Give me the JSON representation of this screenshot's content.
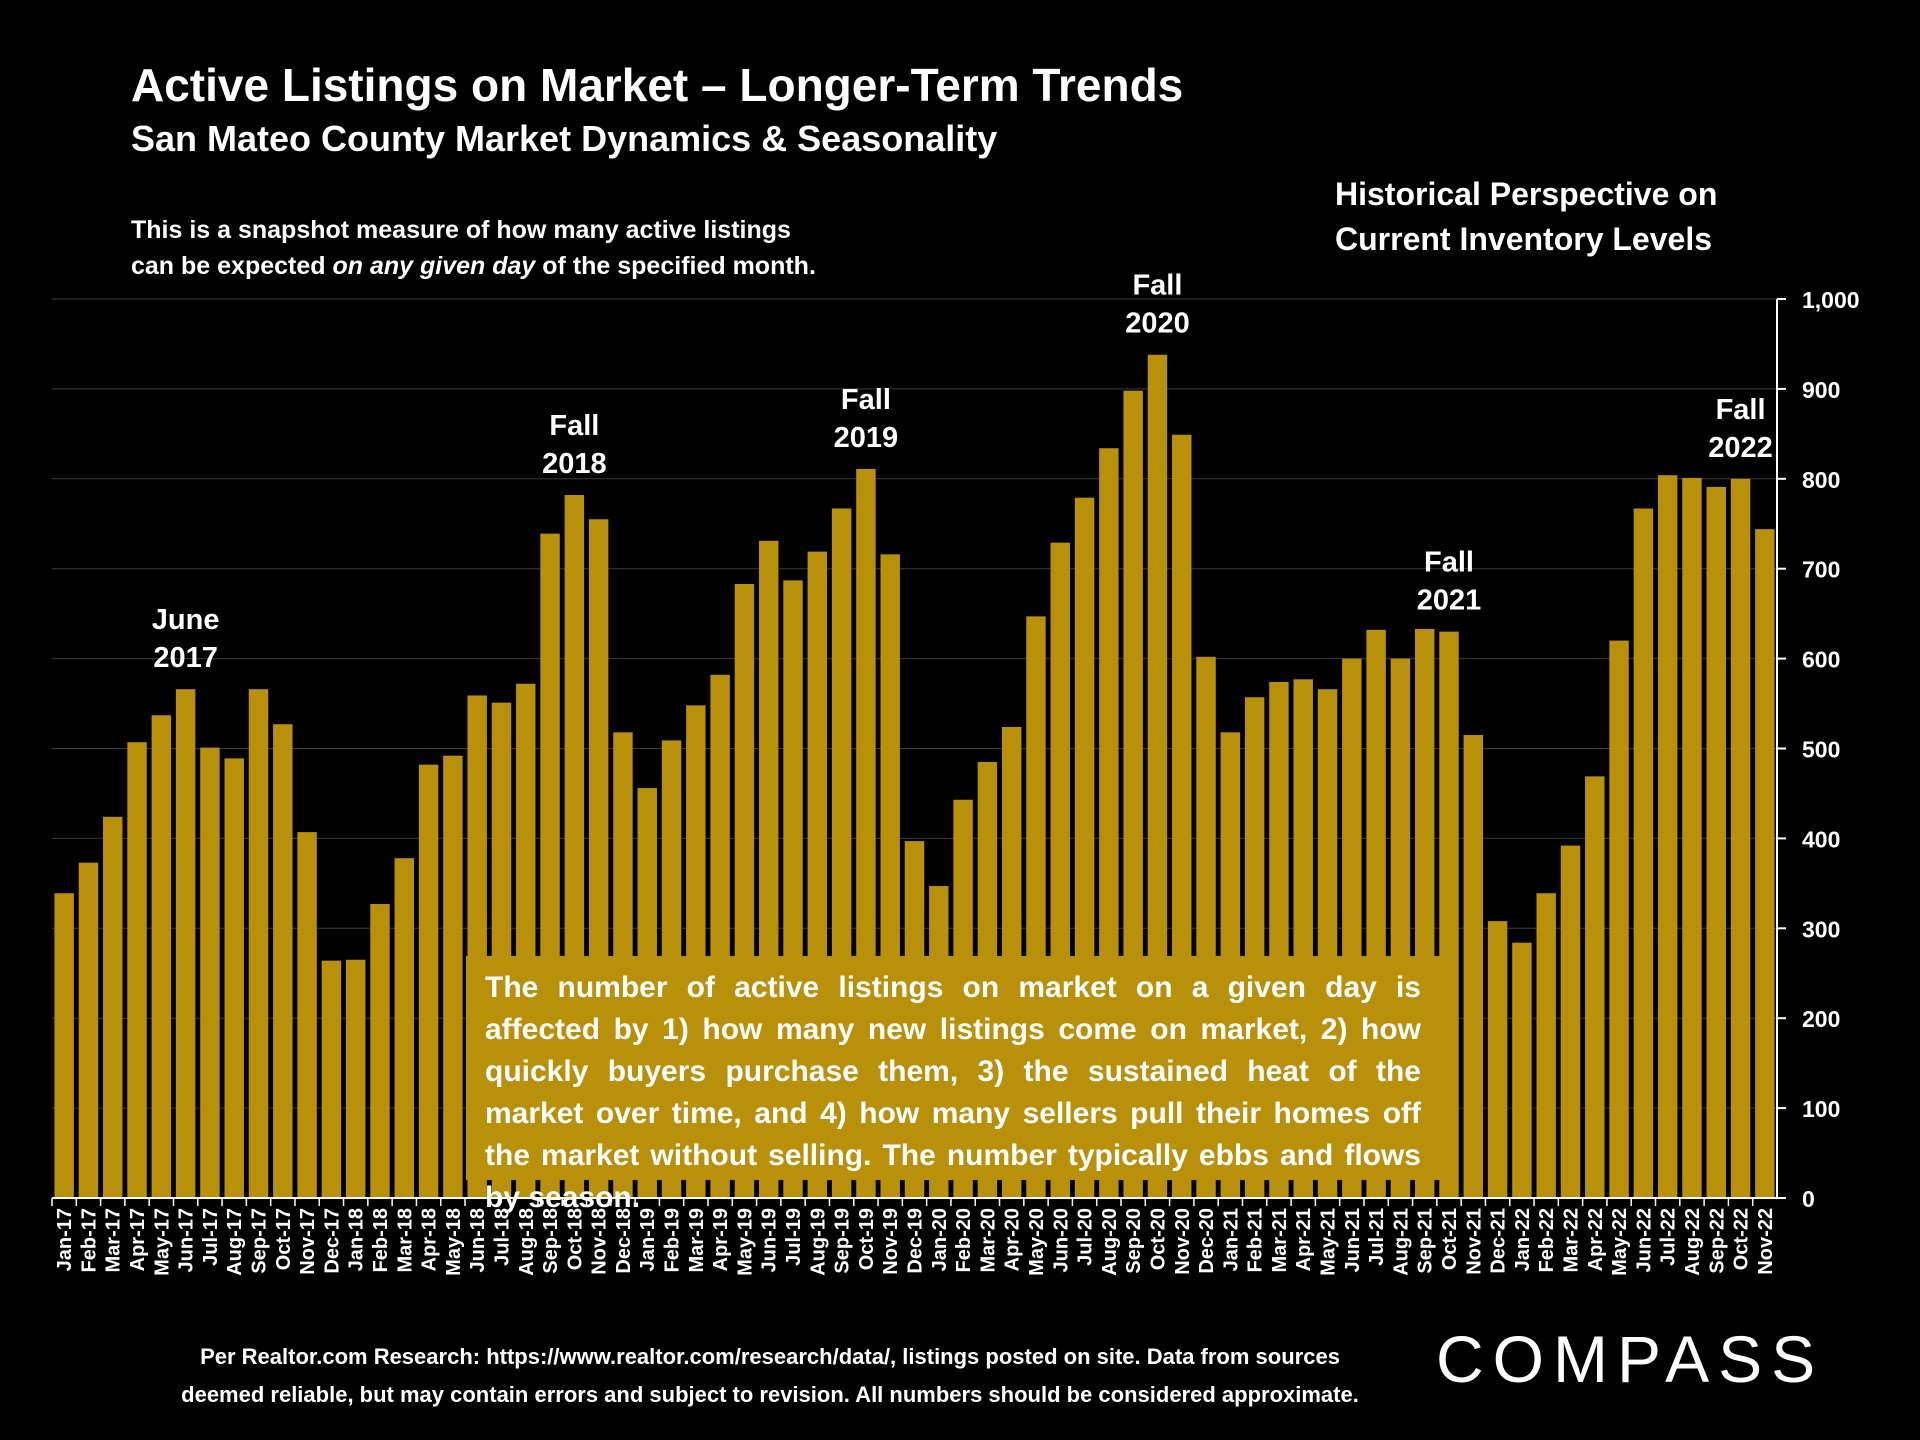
{
  "header": {
    "title": "Active Listings on Market – Longer-Term Trends",
    "subtitle": "San Mateo County Market Dynamics & Seasonality"
  },
  "note": {
    "line1": "This is a snapshot measure of how many active listings",
    "line2_pre": "can be expected ",
    "line2_em": "on any given day",
    "line2_post": " of the specified month."
  },
  "perspective": {
    "line1": "Historical Perspective on",
    "line2": "Current Inventory Levels"
  },
  "infobox": {
    "text": "The number of active listings on market on a given day is affected by 1) how many new listings come on market, 2) how quickly buyers purchase them, 3) the sustained heat of the market over time, and 4) how many sellers pull their homes off the market without selling. The number typically ebbs and flows by season."
  },
  "footer": {
    "line1": "Per Realtor.com Research:  https://www.realtor.com/research/data/, listings posted on site. Data from sources",
    "line2": "deemed reliable, but may contain errors and subject to revision. All numbers should be considered approximate."
  },
  "logo": {
    "text": "COMPASS"
  },
  "colors": {
    "bar": "#B8900A",
    "background": "#000000",
    "text": "#FFFFFF",
    "grid": "#3A3A3A"
  },
  "chart_data": {
    "type": "bar",
    "categories": [
      "Jan-17",
      "Feb-17",
      "Mar-17",
      "Apr-17",
      "May-17",
      "Jun-17",
      "Jul-17",
      "Aug-17",
      "Sep-17",
      "Oct-17",
      "Nov-17",
      "Dec-17",
      "Jan-18",
      "Feb-18",
      "Mar-18",
      "Apr-18",
      "May-18",
      "Jun-18",
      "Jul-18",
      "Aug-18",
      "Sep-18",
      "Oct-18",
      "Nov-18",
      "Dec-18",
      "Jan-19",
      "Feb-19",
      "Mar-19",
      "Apr-19",
      "May-19",
      "Jun-19",
      "Jul-19",
      "Aug-19",
      "Sep-19",
      "Oct-19",
      "Nov-19",
      "Dec-19",
      "Jan-20",
      "Feb-20",
      "Mar-20",
      "Apr-20",
      "May-20",
      "Jun-20",
      "Jul-20",
      "Aug-20",
      "Sep-20",
      "Oct-20",
      "Nov-20",
      "Dec-20",
      "Jan-21",
      "Feb-21",
      "Mar-21",
      "Apr-21",
      "May-21",
      "Jun-21",
      "Jul-21",
      "Aug-21",
      "Sep-21",
      "Oct-21",
      "Nov-21",
      "Dec-21",
      "Jan-22",
      "Feb-22",
      "Mar-22",
      "Apr-22",
      "May-22",
      "Jun-22",
      "Jul-22",
      "Aug-22",
      "Sep-22",
      "Oct-22",
      "Nov-22"
    ],
    "values": [
      339,
      373,
      424,
      507,
      537,
      566,
      501,
      489,
      566,
      527,
      407,
      264,
      265,
      327,
      378,
      482,
      492,
      559,
      551,
      572,
      739,
      782,
      755,
      518,
      456,
      509,
      548,
      582,
      683,
      731,
      687,
      719,
      767,
      811,
      716,
      397,
      347,
      443,
      485,
      524,
      647,
      729,
      779,
      834,
      898,
      938,
      849,
      602,
      518,
      557,
      574,
      577,
      566,
      600,
      632,
      600,
      633,
      630,
      515,
      308,
      284,
      339,
      392,
      469,
      620,
      767,
      804,
      801,
      791,
      800,
      744
    ],
    "ylim": [
      0,
      1000
    ],
    "yticks": [
      "0",
      "100",
      "200",
      "300",
      "400",
      "500",
      "600",
      "700",
      "800",
      "900",
      "1,000"
    ],
    "grid": true,
    "annotations": [
      {
        "line1": "June",
        "line2": "2017",
        "at": "Jun-17"
      },
      {
        "line1": "Fall",
        "line2": "2018",
        "at": "Oct-18"
      },
      {
        "line1": "Fall",
        "line2": "2019",
        "at": "Oct-19"
      },
      {
        "line1": "Fall",
        "line2": "2020",
        "at": "Oct-20"
      },
      {
        "line1": "Fall",
        "line2": "2021",
        "at": "Oct-21"
      },
      {
        "line1": "Fall",
        "line2": "2022",
        "at": "Oct-22"
      }
    ]
  }
}
